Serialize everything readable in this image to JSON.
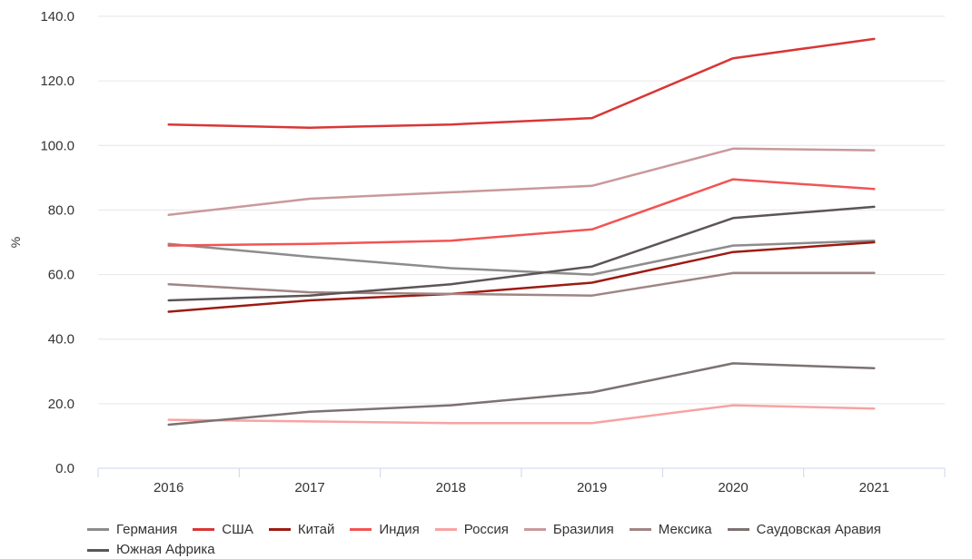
{
  "chart_data": {
    "type": "line",
    "title": "",
    "xlabel": "",
    "ylabel": "%",
    "ylim": [
      0,
      140
    ],
    "yticks": [
      "0.0",
      "20.0",
      "40.0",
      "60.0",
      "80.0",
      "100.0",
      "120.0",
      "140.0"
    ],
    "categories": [
      "2016",
      "2017",
      "2018",
      "2019",
      "2020",
      "2021"
    ],
    "grid": "horizontal",
    "legend_position": "bottom",
    "series": [
      {
        "name": "Германия",
        "color": "#8c8c8c",
        "values": [
          69.5,
          65.5,
          62,
          60,
          69,
          70.5
        ]
      },
      {
        "name": "США",
        "color": "#d93636",
        "values": [
          106.5,
          105.5,
          106.5,
          108.5,
          127,
          133
        ]
      },
      {
        "name": "Китай",
        "color": "#9c1b14",
        "values": [
          48.5,
          52,
          54,
          57.5,
          67,
          70
        ]
      },
      {
        "name": "Индия",
        "color": "#f25454",
        "values": [
          69,
          69.5,
          70.5,
          74,
          89.5,
          86.5
        ]
      },
      {
        "name": "Россия",
        "color": "#f7a3a3",
        "values": [
          15,
          14.5,
          14,
          14,
          19.5,
          18.5
        ]
      },
      {
        "name": "Бразилия",
        "color": "#c9999b",
        "values": [
          78.5,
          83.5,
          85.5,
          87.5,
          99,
          98.5
        ]
      },
      {
        "name": "Мексика",
        "color": "#a08585",
        "values": [
          57,
          54.5,
          54,
          53.5,
          60.5,
          60.5
        ]
      },
      {
        "name": "Саудовская Аравия",
        "color": "#7d7171",
        "values": [
          13.5,
          17.5,
          19.5,
          23.5,
          32.5,
          31
        ]
      },
      {
        "name": "Южная Африка",
        "color": "#5c5557",
        "values": [
          52,
          53.5,
          57,
          62.5,
          77.5,
          81
        ]
      }
    ]
  }
}
